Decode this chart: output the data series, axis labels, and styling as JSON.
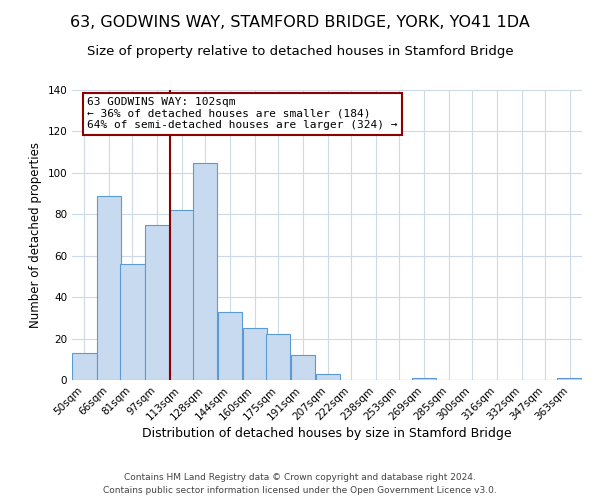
{
  "title": "63, GODWINS WAY, STAMFORD BRIDGE, YORK, YO41 1DA",
  "subtitle": "Size of property relative to detached houses in Stamford Bridge",
  "xlabel": "Distribution of detached houses by size in Stamford Bridge",
  "ylabel": "Number of detached properties",
  "bar_labels": [
    "50sqm",
    "66sqm",
    "81sqm",
    "97sqm",
    "113sqm",
    "128sqm",
    "144sqm",
    "160sqm",
    "175sqm",
    "191sqm",
    "207sqm",
    "222sqm",
    "238sqm",
    "253sqm",
    "269sqm",
    "285sqm",
    "300sqm",
    "316sqm",
    "332sqm",
    "347sqm",
    "363sqm"
  ],
  "bar_values": [
    13,
    89,
    56,
    75,
    82,
    105,
    33,
    25,
    22,
    12,
    3,
    0,
    0,
    0,
    1,
    0,
    0,
    0,
    0,
    0,
    1
  ],
  "bar_color": "#c8daf0",
  "bar_edge_color": "#5b9bd5",
  "vline_color": "#8b0000",
  "annotation_title": "63 GODWINS WAY: 102sqm",
  "annotation_line1": "← 36% of detached houses are smaller (184)",
  "annotation_line2": "64% of semi-detached houses are larger (324) →",
  "annotation_box_edge": "#8b0000",
  "ylim": [
    0,
    140
  ],
  "yticks": [
    0,
    20,
    40,
    60,
    80,
    100,
    120,
    140
  ],
  "footer1": "Contains HM Land Registry data © Crown copyright and database right 2024.",
  "footer2": "Contains public sector information licensed under the Open Government Licence v3.0.",
  "bg_color": "#ffffff",
  "grid_color": "#cdd9e5",
  "title_fontsize": 11.5,
  "subtitle_fontsize": 9.5,
  "xlabel_fontsize": 9,
  "ylabel_fontsize": 8.5,
  "tick_fontsize": 7.5,
  "footer_fontsize": 6.5,
  "annotation_fontsize": 8,
  "vline_x_index": 3,
  "bin_starts": [
    42,
    58,
    73,
    89,
    105,
    120,
    136,
    152,
    167,
    183,
    199,
    214,
    230,
    245,
    261,
    277,
    292,
    308,
    324,
    339,
    355
  ],
  "bin_width": 16,
  "vline_x_data": 97
}
